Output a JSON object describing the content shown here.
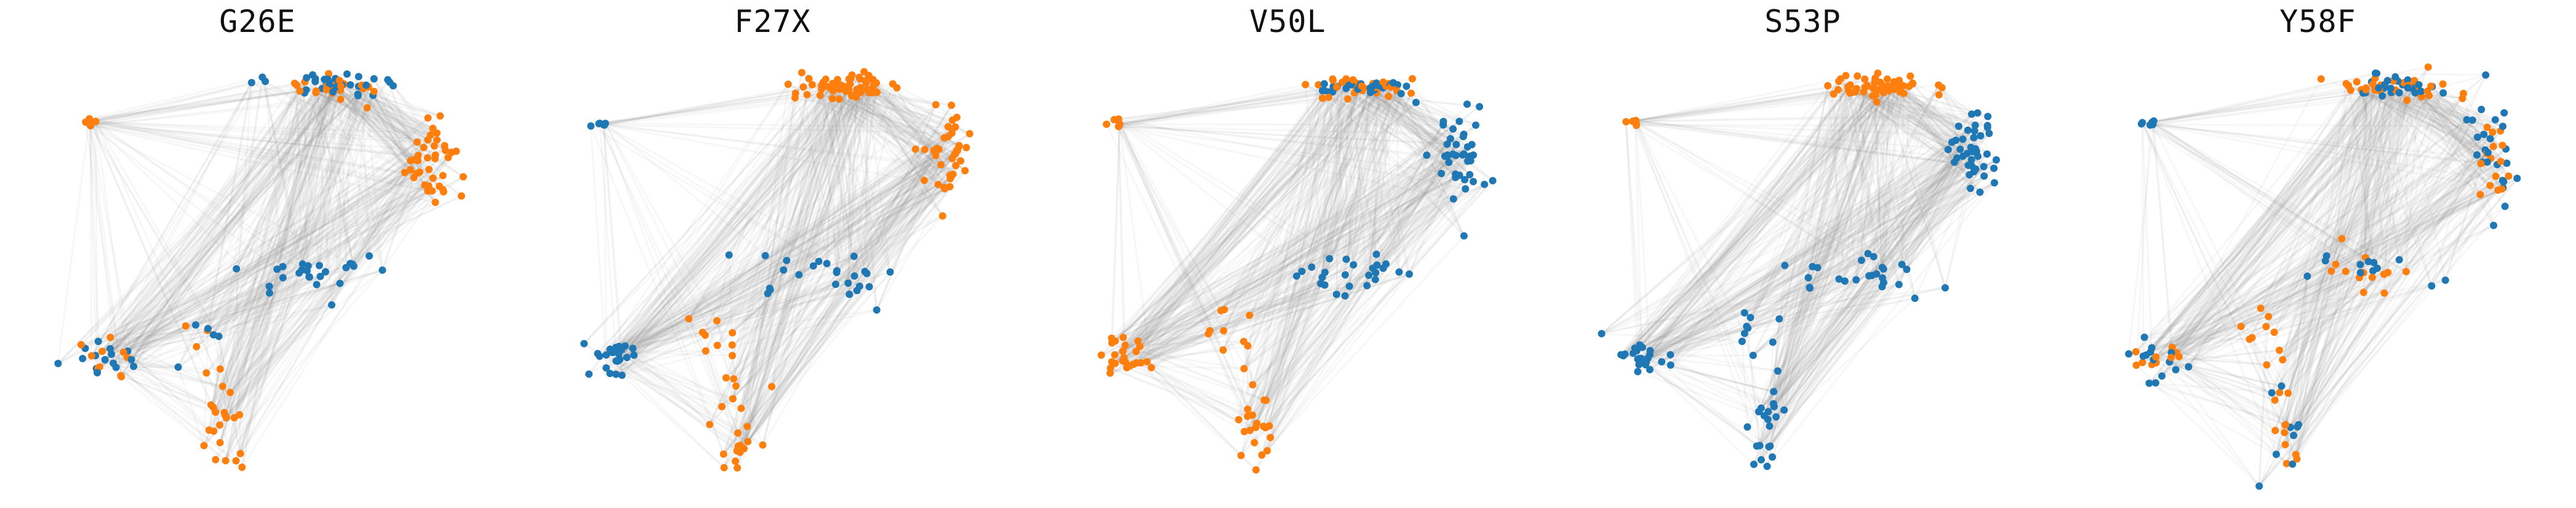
{
  "colors": {
    "group_a": "#1f77b4",
    "group_b": "#ff7f0e",
    "edges": "#8c8c8c"
  },
  "chart_data": [
    {
      "type": "scatter",
      "title": "G26E",
      "axes_visible": false,
      "clusters": [
        {
          "id": "top",
          "cx": 0.38,
          "cy": 0.96,
          "n": 60,
          "sx": 0.1,
          "sy": 0.03,
          "color": "mixed"
        },
        {
          "id": "right_arm",
          "cx": 0.76,
          "cy": 0.62,
          "n": 40,
          "sx": 0.05,
          "sy": 0.12,
          "color": "orange"
        },
        {
          "id": "left_top",
          "cx": -0.6,
          "cy": 0.78,
          "n": 6,
          "sx": 0.02,
          "sy": 0.01,
          "color": "orange"
        },
        {
          "id": "center",
          "cx": 0.3,
          "cy": 0.05,
          "n": 25,
          "sx": 0.15,
          "sy": 0.05,
          "color": "blue"
        },
        {
          "id": "left_mid",
          "cx": -0.55,
          "cy": -0.35,
          "n": 25,
          "sx": 0.06,
          "sy": 0.05,
          "color": "mixed"
        },
        {
          "id": "mid_low",
          "cx": -0.15,
          "cy": -0.25,
          "n": 10,
          "sx": 0.06,
          "sy": 0.08,
          "color": "mixed"
        },
        {
          "id": "bottom_arm",
          "cx": -0.05,
          "cy": -0.7,
          "n": 20,
          "sx": 0.04,
          "sy": 0.12,
          "color": "orange"
        }
      ]
    },
    {
      "type": "scatter",
      "title": "F27X",
      "axes_visible": false,
      "clusters": [
        {
          "id": "top",
          "cx": 0.38,
          "cy": 0.96,
          "n": 60,
          "sx": 0.1,
          "sy": 0.03,
          "color": "orange"
        },
        {
          "id": "right_arm",
          "cx": 0.76,
          "cy": 0.62,
          "n": 40,
          "sx": 0.05,
          "sy": 0.12,
          "color": "orange"
        },
        {
          "id": "left_top",
          "cx": -0.6,
          "cy": 0.78,
          "n": 6,
          "sx": 0.02,
          "sy": 0.01,
          "color": "blue"
        },
        {
          "id": "center",
          "cx": 0.3,
          "cy": 0.05,
          "n": 25,
          "sx": 0.15,
          "sy": 0.05,
          "color": "blue"
        },
        {
          "id": "left_mid",
          "cx": -0.55,
          "cy": -0.35,
          "n": 25,
          "sx": 0.06,
          "sy": 0.05,
          "color": "blue"
        },
        {
          "id": "mid_low",
          "cx": -0.15,
          "cy": -0.25,
          "n": 10,
          "sx": 0.06,
          "sy": 0.08,
          "color": "orange"
        },
        {
          "id": "bottom_arm",
          "cx": -0.05,
          "cy": -0.7,
          "n": 20,
          "sx": 0.04,
          "sy": 0.12,
          "color": "orange"
        }
      ]
    },
    {
      "type": "scatter",
      "title": "V50L",
      "axes_visible": false,
      "clusters": [
        {
          "id": "top",
          "cx": 0.38,
          "cy": 0.96,
          "n": 60,
          "sx": 0.1,
          "sy": 0.03,
          "color": "mixed"
        },
        {
          "id": "right_arm",
          "cx": 0.76,
          "cy": 0.62,
          "n": 40,
          "sx": 0.05,
          "sy": 0.12,
          "color": "blue"
        },
        {
          "id": "left_top",
          "cx": -0.6,
          "cy": 0.78,
          "n": 6,
          "sx": 0.02,
          "sy": 0.01,
          "color": "orange"
        },
        {
          "id": "center",
          "cx": 0.3,
          "cy": 0.05,
          "n": 25,
          "sx": 0.15,
          "sy": 0.05,
          "color": "blue"
        },
        {
          "id": "left_mid",
          "cx": -0.55,
          "cy": -0.35,
          "n": 25,
          "sx": 0.06,
          "sy": 0.05,
          "color": "orange"
        },
        {
          "id": "mid_low",
          "cx": -0.15,
          "cy": -0.25,
          "n": 10,
          "sx": 0.06,
          "sy": 0.08,
          "color": "orange"
        },
        {
          "id": "bottom_arm",
          "cx": -0.05,
          "cy": -0.7,
          "n": 20,
          "sx": 0.04,
          "sy": 0.12,
          "color": "orange"
        }
      ]
    },
    {
      "type": "scatter",
      "title": "S53P",
      "axes_visible": false,
      "clusters": [
        {
          "id": "top",
          "cx": 0.38,
          "cy": 0.96,
          "n": 60,
          "sx": 0.1,
          "sy": 0.03,
          "color": "orange"
        },
        {
          "id": "right_arm",
          "cx": 0.76,
          "cy": 0.62,
          "n": 40,
          "sx": 0.05,
          "sy": 0.12,
          "color": "blue"
        },
        {
          "id": "left_top",
          "cx": -0.6,
          "cy": 0.78,
          "n": 6,
          "sx": 0.02,
          "sy": 0.01,
          "color": "orange"
        },
        {
          "id": "center",
          "cx": 0.3,
          "cy": 0.05,
          "n": 25,
          "sx": 0.15,
          "sy": 0.05,
          "color": "blue"
        },
        {
          "id": "left_mid",
          "cx": -0.55,
          "cy": -0.35,
          "n": 25,
          "sx": 0.06,
          "sy": 0.05,
          "color": "blue"
        },
        {
          "id": "mid_low",
          "cx": -0.15,
          "cy": -0.25,
          "n": 10,
          "sx": 0.06,
          "sy": 0.08,
          "color": "blue"
        },
        {
          "id": "bottom_arm",
          "cx": -0.05,
          "cy": -0.7,
          "n": 20,
          "sx": 0.04,
          "sy": 0.12,
          "color": "blue"
        }
      ]
    },
    {
      "type": "scatter",
      "title": "Y58F",
      "axes_visible": false,
      "clusters": [
        {
          "id": "top",
          "cx": 0.38,
          "cy": 0.96,
          "n": 60,
          "sx": 0.1,
          "sy": 0.03,
          "color": "mixed"
        },
        {
          "id": "right_arm",
          "cx": 0.76,
          "cy": 0.62,
          "n": 40,
          "sx": 0.05,
          "sy": 0.12,
          "color": "mixed"
        },
        {
          "id": "left_top",
          "cx": -0.6,
          "cy": 0.78,
          "n": 6,
          "sx": 0.02,
          "sy": 0.01,
          "color": "blue"
        },
        {
          "id": "center",
          "cx": 0.3,
          "cy": 0.05,
          "n": 25,
          "sx": 0.15,
          "sy": 0.05,
          "color": "mixed"
        },
        {
          "id": "left_mid",
          "cx": -0.55,
          "cy": -0.35,
          "n": 25,
          "sx": 0.06,
          "sy": 0.05,
          "color": "mixed"
        },
        {
          "id": "mid_low",
          "cx": -0.15,
          "cy": -0.25,
          "n": 10,
          "sx": 0.06,
          "sy": 0.08,
          "color": "orange"
        },
        {
          "id": "bottom_arm",
          "cx": -0.05,
          "cy": -0.7,
          "n": 20,
          "sx": 0.04,
          "sy": 0.12,
          "color": "mixed"
        }
      ]
    }
  ]
}
